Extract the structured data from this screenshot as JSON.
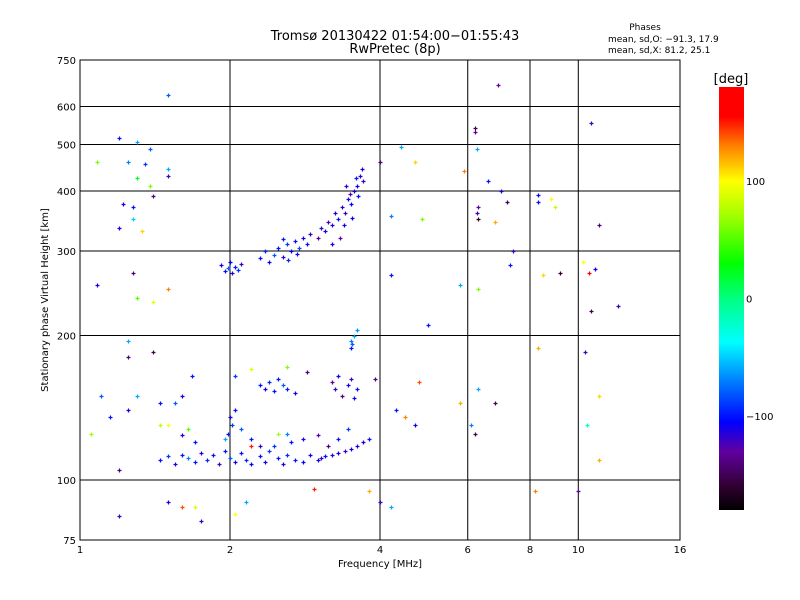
{
  "chart_data": {
    "type": "scatter",
    "title": "Tromsø 20130422 01:54:00−01:55:43",
    "subtitle": "RwPretec (8p)",
    "xlabel": "Frequency [MHz]",
    "ylabel": "Stationary phase Virtual Height [km]",
    "xscale": "log2",
    "yscale": "log",
    "xlim": [
      1,
      16
    ],
    "ylim": [
      75,
      750
    ],
    "xticks": [
      1,
      2,
      4,
      6,
      8,
      10,
      16
    ],
    "xtick_labels": [
      "1",
      "2",
      "4",
      "6",
      "8",
      "10",
      "16"
    ],
    "xgrid": [
      2,
      4,
      6,
      8,
      10
    ],
    "yticks": [
      75,
      100,
      200,
      300,
      400,
      500,
      600,
      750
    ],
    "ytick_labels": [
      "75",
      "100",
      "200",
      "300",
      "400",
      "500",
      "600",
      "750"
    ],
    "ygrid": [
      100,
      200,
      300,
      400,
      500,
      600
    ],
    "grid": true,
    "stats": {
      "title": "Phases",
      "o_line": "mean, sd,O:  −91.3, 17.9",
      "x_line": "mean, sd,X:   81.2, 25.1"
    },
    "colorbar": {
      "label": "[deg]",
      "range": [
        -180,
        180
      ],
      "ticks": [
        100,
        0,
        -100
      ],
      "tick_labels": [
        "100",
        "0",
        "−100"
      ],
      "stops": [
        [
          -180,
          "#000000"
        ],
        [
          -160,
          "#300030"
        ],
        [
          -130,
          "#6000a0"
        ],
        [
          -105,
          "#0000ff"
        ],
        [
          -70,
          "#0080ff"
        ],
        [
          -37,
          "#00ffff"
        ],
        [
          0,
          "#00ff80"
        ],
        [
          30,
          "#00ff00"
        ],
        [
          70,
          "#a0ff00"
        ],
        [
          100,
          "#ffff00"
        ],
        [
          130,
          "#ff8000"
        ],
        [
          155,
          "#ff0000"
        ],
        [
          180,
          "#ff0000"
        ]
      ]
    },
    "point_format": [
      "frequency_MHz",
      "height_km",
      "phase_deg"
    ],
    "points": [
      [
        1.92,
        280,
        -110
      ],
      [
        1.95,
        272,
        -100
      ],
      [
        1.98,
        276,
        -80
      ],
      [
        2.02,
        270,
        -115
      ],
      [
        2.05,
        278,
        -100
      ],
      [
        2.08,
        274,
        -90
      ],
      [
        2.1,
        282,
        -120
      ],
      [
        2.0,
        285,
        -105
      ],
      [
        2.3,
        290,
        -100
      ],
      [
        2.35,
        300,
        -95
      ],
      [
        2.4,
        285,
        -110
      ],
      [
        2.45,
        295,
        -80
      ],
      [
        2.5,
        305,
        -100
      ],
      [
        2.55,
        292,
        -115
      ],
      [
        2.6,
        310,
        -90
      ],
      [
        2.65,
        300,
        -105
      ],
      [
        2.7,
        315,
        -100
      ],
      [
        2.75,
        305,
        -85
      ],
      [
        2.8,
        320,
        -110
      ],
      [
        2.85,
        310,
        -100
      ],
      [
        2.9,
        325,
        -120
      ],
      [
        2.55,
        318,
        -100
      ],
      [
        2.62,
        288,
        -95
      ],
      [
        2.72,
        296,
        -110
      ],
      [
        3.0,
        320,
        -135
      ],
      [
        3.05,
        335,
        -120
      ],
      [
        3.1,
        330,
        -110
      ],
      [
        3.15,
        345,
        -125
      ],
      [
        3.2,
        340,
        -115
      ],
      [
        3.25,
        360,
        -110
      ],
      [
        3.3,
        350,
        -100
      ],
      [
        3.35,
        370,
        -115
      ],
      [
        3.4,
        360,
        -120
      ],
      [
        3.45,
        385,
        -110
      ],
      [
        3.5,
        375,
        -105
      ],
      [
        3.55,
        400,
        -115
      ],
      [
        3.6,
        410,
        -110
      ],
      [
        3.62,
        390,
        -100
      ],
      [
        3.65,
        430,
        -115
      ],
      [
        3.68,
        445,
        -110
      ],
      [
        3.7,
        420,
        -120
      ],
      [
        3.58,
        425,
        -100
      ],
      [
        3.48,
        395,
        -125
      ],
      [
        3.38,
        340,
        -110
      ],
      [
        3.42,
        410,
        -115
      ],
      [
        3.52,
        352,
        -105
      ],
      [
        3.33,
        320,
        -130
      ],
      [
        3.2,
        310,
        -110
      ],
      [
        1.45,
        110,
        -100
      ],
      [
        1.5,
        112,
        -90
      ],
      [
        1.55,
        108,
        -110
      ],
      [
        1.6,
        113,
        -100
      ],
      [
        1.65,
        111,
        -70
      ],
      [
        1.7,
        109,
        -100
      ],
      [
        1.75,
        114,
        -110
      ],
      [
        1.8,
        110,
        -95
      ],
      [
        1.85,
        113,
        -100
      ],
      [
        1.9,
        108,
        -120
      ],
      [
        1.95,
        115,
        -100
      ],
      [
        2.0,
        111,
        -80
      ],
      [
        2.05,
        109,
        -110
      ],
      [
        2.1,
        114,
        -100
      ],
      [
        2.15,
        110,
        -95
      ],
      [
        2.2,
        108,
        -105
      ],
      [
        2.3,
        112,
        -100
      ],
      [
        2.35,
        109,
        -110
      ],
      [
        2.4,
        115,
        -90
      ],
      [
        2.5,
        111,
        -100
      ],
      [
        2.55,
        108,
        -110
      ],
      [
        2.6,
        113,
        -95
      ],
      [
        2.7,
        110,
        -100
      ],
      [
        2.8,
        109,
        -105
      ],
      [
        2.9,
        113,
        -110
      ],
      [
        3.0,
        110,
        -110
      ],
      [
        3.05,
        111,
        -120
      ],
      [
        3.1,
        112,
        -100
      ],
      [
        3.2,
        113,
        -115
      ],
      [
        3.3,
        114,
        -110
      ],
      [
        3.4,
        115,
        -120
      ],
      [
        3.5,
        116,
        -110
      ],
      [
        3.6,
        118,
        -115
      ],
      [
        3.7,
        120,
        -110
      ],
      [
        3.8,
        122,
        -100
      ],
      [
        1.98,
        125,
        -100
      ],
      [
        2.02,
        130,
        -90
      ],
      [
        2.0,
        135,
        -110
      ],
      [
        2.05,
        140,
        -100
      ],
      [
        2.1,
        128,
        -80
      ],
      [
        1.95,
        122,
        -60
      ],
      [
        2.2,
        122,
        -100
      ],
      [
        2.3,
        118,
        -120
      ],
      [
        2.45,
        118,
        -90
      ],
      [
        2.6,
        125,
        -70
      ],
      [
        2.65,
        120,
        -100
      ],
      [
        2.8,
        122,
        -110
      ],
      [
        3.0,
        124,
        -130
      ],
      [
        3.15,
        118,
        -140
      ],
      [
        3.3,
        122,
        -100
      ],
      [
        3.45,
        128,
        -90
      ],
      [
        1.7,
        120,
        -100
      ],
      [
        1.6,
        124,
        -110
      ],
      [
        2.5,
        125,
        70
      ],
      [
        2.2,
        118,
        150
      ],
      [
        2.3,
        158,
        -100
      ],
      [
        2.35,
        155,
        -110
      ],
      [
        2.4,
        160,
        -95
      ],
      [
        2.45,
        153,
        -100
      ],
      [
        2.55,
        158,
        -80
      ],
      [
        2.6,
        155,
        -100
      ],
      [
        2.7,
        152,
        -110
      ],
      [
        2.5,
        162,
        -100
      ],
      [
        3.2,
        160,
        -130
      ],
      [
        3.25,
        155,
        -120
      ],
      [
        3.3,
        165,
        -110
      ],
      [
        3.35,
        150,
        -140
      ],
      [
        3.45,
        158,
        -110
      ],
      [
        3.5,
        162,
        -120
      ],
      [
        3.55,
        148,
        -110
      ],
      [
        3.6,
        155,
        -100
      ],
      [
        3.5,
        195,
        -70
      ],
      [
        3.55,
        200,
        -60
      ],
      [
        3.6,
        205,
        -65
      ],
      [
        3.52,
        192,
        -80
      ],
      [
        1.08,
        460,
        60
      ],
      [
        1.2,
        515,
        -100
      ],
      [
        1.25,
        460,
        -70
      ],
      [
        1.3,
        505,
        -60
      ],
      [
        1.38,
        490,
        -80
      ],
      [
        1.35,
        455,
        -90
      ],
      [
        1.3,
        425,
        20
      ],
      [
        1.22,
        375,
        -110
      ],
      [
        1.28,
        370,
        -100
      ],
      [
        1.38,
        410,
        60
      ],
      [
        1.4,
        390,
        -140
      ],
      [
        1.2,
        335,
        -110
      ],
      [
        1.28,
        350,
        -50
      ],
      [
        1.33,
        330,
        110
      ],
      [
        1.5,
        430,
        -120
      ],
      [
        1.5,
        445,
        -60
      ],
      [
        1.5,
        635,
        -80
      ],
      [
        1.08,
        255,
        -110
      ],
      [
        1.28,
        270,
        -140
      ],
      [
        1.3,
        240,
        50
      ],
      [
        1.4,
        235,
        90
      ],
      [
        1.5,
        250,
        130
      ],
      [
        1.25,
        195,
        -60
      ],
      [
        1.25,
        180,
        -140
      ],
      [
        1.4,
        185,
        -150
      ],
      [
        1.1,
        150,
        -80
      ],
      [
        1.3,
        150,
        -60
      ],
      [
        1.45,
        145,
        -100
      ],
      [
        1.6,
        150,
        -110
      ],
      [
        1.55,
        145,
        -80
      ],
      [
        1.68,
        165,
        -100
      ],
      [
        1.25,
        140,
        -110
      ],
      [
        1.05,
        125,
        70
      ],
      [
        1.15,
        135,
        -100
      ],
      [
        1.45,
        130,
        80
      ],
      [
        1.5,
        130,
        100
      ],
      [
        1.65,
        128,
        50
      ],
      [
        1.2,
        105,
        -140
      ],
      [
        1.5,
        90,
        -110
      ],
      [
        1.6,
        88,
        140
      ],
      [
        1.7,
        88,
        90
      ],
      [
        1.75,
        82,
        -120
      ],
      [
        2.05,
        85,
        100
      ],
      [
        2.15,
        90,
        -60
      ],
      [
        1.2,
        84,
        -120
      ],
      [
        2.95,
        96,
        150
      ],
      [
        3.8,
        95,
        120
      ],
      [
        4.0,
        90,
        -120
      ],
      [
        4.2,
        88,
        -60
      ],
      [
        2.05,
        165,
        -90
      ],
      [
        2.2,
        170,
        90
      ],
      [
        2.6,
        172,
        60
      ],
      [
        2.85,
        168,
        -140
      ],
      [
        3.5,
        188,
        -100
      ],
      [
        3.9,
        162,
        -140
      ],
      [
        4.0,
        460,
        -140
      ],
      [
        4.4,
        495,
        -60
      ],
      [
        4.7,
        460,
        110
      ],
      [
        4.2,
        355,
        -70
      ],
      [
        4.85,
        350,
        60
      ],
      [
        4.2,
        268,
        -100
      ],
      [
        5.0,
        210,
        -100
      ],
      [
        4.8,
        160,
        140
      ],
      [
        4.7,
        130,
        -110
      ],
      [
        4.5,
        135,
        130
      ],
      [
        4.3,
        140,
        -100
      ],
      [
        5.9,
        440,
        130
      ],
      [
        6.2,
        540,
        -150
      ],
      [
        6.2,
        530,
        -130
      ],
      [
        6.25,
        490,
        -60
      ],
      [
        6.3,
        370,
        -130
      ],
      [
        6.25,
        360,
        -120
      ],
      [
        6.3,
        350,
        -160
      ],
      [
        6.6,
        420,
        -100
      ],
      [
        6.8,
        345,
        120
      ],
      [
        6.9,
        665,
        -130
      ],
      [
        7.0,
        400,
        -110
      ],
      [
        7.2,
        380,
        -150
      ],
      [
        7.4,
        300,
        -120
      ],
      [
        7.3,
        280,
        -100
      ],
      [
        5.8,
        255,
        -60
      ],
      [
        6.3,
        250,
        60
      ],
      [
        6.1,
        130,
        -70
      ],
      [
        6.2,
        125,
        -150
      ],
      [
        6.3,
        155,
        -60
      ],
      [
        6.8,
        145,
        -150
      ],
      [
        5.8,
        145,
        120
      ],
      [
        8.3,
        392,
        -110
      ],
      [
        8.3,
        380,
        -100
      ],
      [
        8.8,
        385,
        100
      ],
      [
        9.0,
        370,
        80
      ],
      [
        8.5,
        268,
        110
      ],
      [
        9.2,
        270,
        -160
      ],
      [
        8.3,
        188,
        120
      ],
      [
        8.2,
        95,
        130
      ],
      [
        10.6,
        555,
        -120
      ],
      [
        11.0,
        340,
        -140
      ],
      [
        10.2,
        285,
        100
      ],
      [
        10.5,
        270,
        160
      ],
      [
        10.8,
        275,
        -110
      ],
      [
        12.0,
        230,
        -120
      ],
      [
        10.6,
        225,
        -150
      ],
      [
        10.3,
        185,
        -120
      ],
      [
        11.0,
        150,
        110
      ],
      [
        10.4,
        130,
        -20
      ],
      [
        11.0,
        110,
        120
      ],
      [
        10.0,
        95,
        -130
      ]
    ]
  }
}
